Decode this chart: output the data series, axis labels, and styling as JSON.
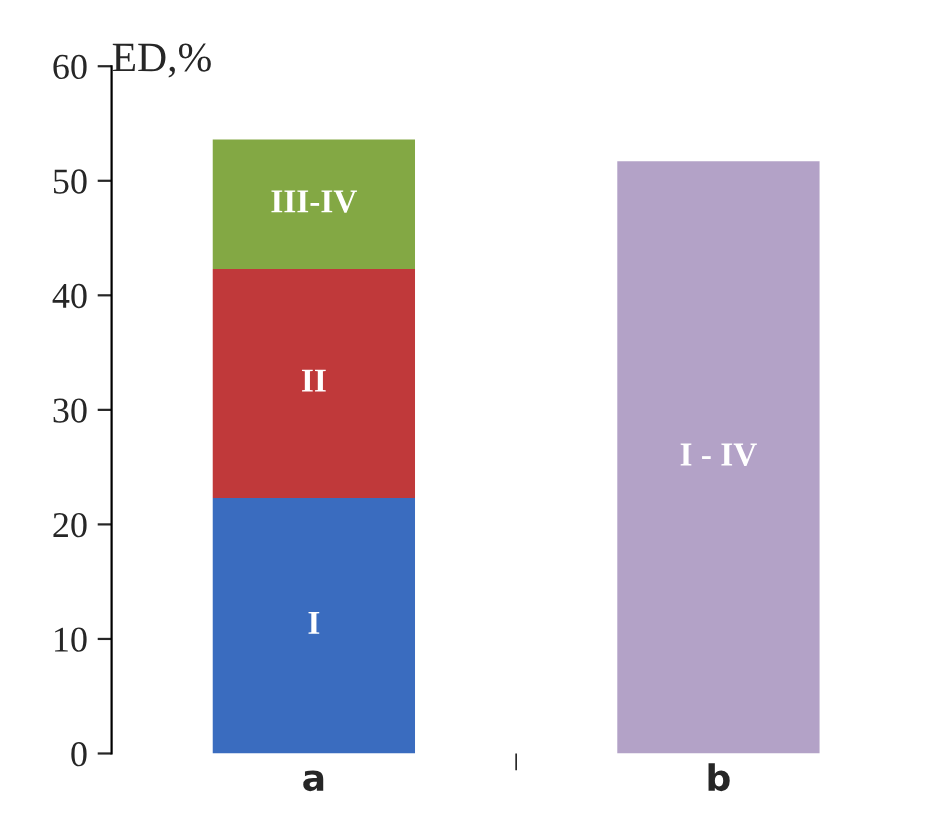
{
  "chart_data": {
    "type": "bar",
    "stacked": true,
    "ylabel": "ED,%",
    "categories": [
      "a",
      "b"
    ],
    "series": [
      {
        "name": "I",
        "color": "#3a6cbf",
        "values": [
          22.3,
          null
        ]
      },
      {
        "name": "II",
        "color": "#c0393a",
        "values": [
          20.0,
          null
        ]
      },
      {
        "name": "III-IV",
        "color": "#83a844",
        "values": [
          11.3,
          null
        ]
      },
      {
        "name": "I - IV",
        "color": "#b3a2c7",
        "values": [
          null,
          51.7
        ]
      }
    ],
    "ylim": [
      0,
      60
    ],
    "yticks": [
      0,
      10,
      20,
      30,
      40,
      50,
      60
    ],
    "grid": false,
    "legend": false
  }
}
